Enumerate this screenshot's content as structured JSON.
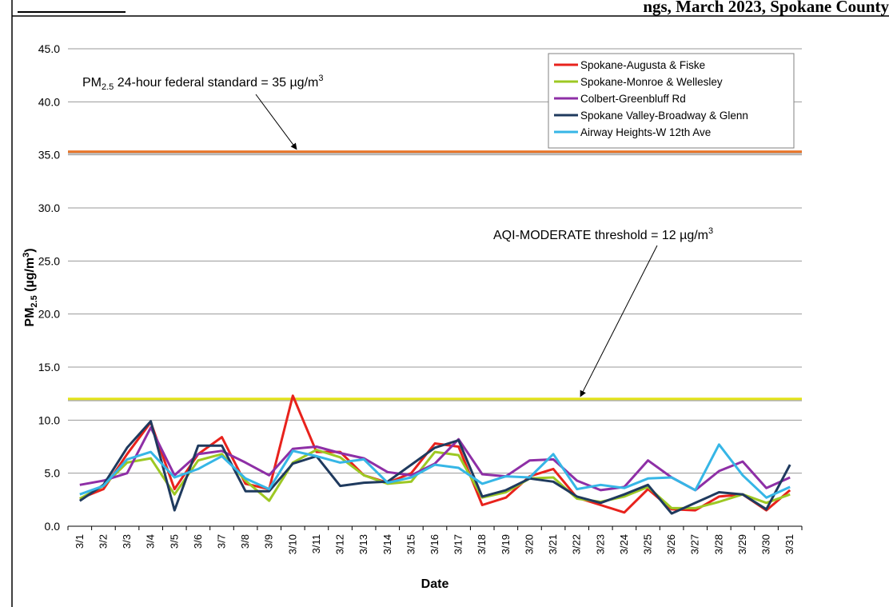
{
  "header": {
    "title_fragment": "ngs, March 2023, Spokane County"
  },
  "chart_data": {
    "type": "line",
    "title": "",
    "xlabel": "Date",
    "ylabel": "PM2.5 (µg/m3)",
    "ylim": [
      0,
      45
    ],
    "ytick_step": 5,
    "ytick_format": 1,
    "grid": true,
    "legend_position": "top-right",
    "categories": [
      "3/1",
      "3/2",
      "3/3",
      "3/4",
      "3/5",
      "3/6",
      "3/7",
      "3/8",
      "3/9",
      "3/10",
      "3/11",
      "3/12",
      "3/13",
      "3/14",
      "3/15",
      "3/16",
      "3/17",
      "3/18",
      "3/19",
      "3/20",
      "3/21",
      "3/22",
      "3/23",
      "3/24",
      "3/25",
      "3/26",
      "3/27",
      "3/28",
      "3/29",
      "3/30",
      "3/31"
    ],
    "series": [
      {
        "name": "Spokane-Augusta & Fiske",
        "color": "#e8221c",
        "values": [
          2.6,
          3.5,
          6.8,
          9.8,
          3.5,
          6.8,
          8.4,
          4.0,
          3.5,
          12.3,
          7.0,
          7.0,
          4.8,
          4.1,
          5.0,
          7.8,
          7.5,
          2.0,
          2.7,
          4.7,
          5.4,
          2.7,
          2.0,
          1.3,
          3.5,
          1.6,
          1.5,
          2.8,
          3.0,
          1.5,
          3.4
        ]
      },
      {
        "name": "Spokane-Monroe & Wellesley",
        "color": "#9dc823",
        "values": [
          2.6,
          3.8,
          6.0,
          6.4,
          3.0,
          6.2,
          6.8,
          4.3,
          2.4,
          6.0,
          7.2,
          6.5,
          4.8,
          4.0,
          4.2,
          7.0,
          6.7,
          2.7,
          3.2,
          4.5,
          4.6,
          2.6,
          2.3,
          2.8,
          3.7,
          1.7,
          1.7,
          2.3,
          3.0,
          2.2,
          3.0
        ]
      },
      {
        "name": "Colbert-Greenbluff Rd",
        "color": "#8e2fa6",
        "values": [
          3.9,
          4.3,
          5.0,
          9.3,
          4.8,
          6.8,
          7.1,
          6.0,
          4.8,
          7.3,
          7.5,
          6.9,
          6.4,
          5.1,
          4.8,
          5.9,
          8.2,
          4.9,
          4.7,
          6.2,
          6.3,
          4.3,
          3.4,
          3.7,
          6.2,
          4.6,
          3.4,
          5.2,
          6.1,
          3.6,
          4.6
        ]
      },
      {
        "name": "Spokane Valley-Broadway & Glenn",
        "color": "#1f3a5e",
        "values": [
          2.4,
          3.9,
          7.4,
          9.9,
          1.5,
          7.6,
          7.6,
          3.3,
          3.3,
          5.9,
          6.6,
          3.8,
          4.1,
          4.2,
          5.8,
          7.4,
          8.1,
          2.8,
          3.4,
          4.5,
          4.2,
          2.8,
          2.2,
          3.0,
          3.9,
          1.2,
          2.2,
          3.2,
          3.0,
          1.6,
          5.8
        ]
      },
      {
        "name": "Airway Heights-W 12th Ave",
        "color": "#36b6e6",
        "values": [
          3.0,
          3.8,
          6.3,
          7.0,
          4.6,
          5.4,
          6.6,
          4.5,
          3.5,
          7.1,
          6.6,
          6.0,
          6.3,
          4.1,
          4.6,
          5.8,
          5.5,
          4.0,
          4.7,
          4.6,
          6.8,
          3.5,
          3.9,
          3.6,
          4.5,
          4.6,
          3.4,
          7.7,
          4.8,
          2.7,
          3.7
        ]
      }
    ],
    "reference_lines": [
      {
        "name": "PM2.5 24-hour federal standard",
        "value": 35.3,
        "color": "#e9772b"
      },
      {
        "name": "AQI-MODERATE threshold",
        "value": 12.0,
        "color": "#e3e31a"
      }
    ],
    "annotations": [
      {
        "part1": "PM",
        "sub": "2.5",
        "part2": " 24-hour federal standard = 35 µg/m",
        "sup": "3"
      },
      {
        "part1": "AQI-MODERATE threshold = 12 µg/m",
        "sup": "3"
      }
    ],
    "ylabel_parts": {
      "part1": "PM",
      "sub": "2.5",
      "part2": " (µg/m",
      "sup": "3",
      "part3": ")"
    }
  }
}
